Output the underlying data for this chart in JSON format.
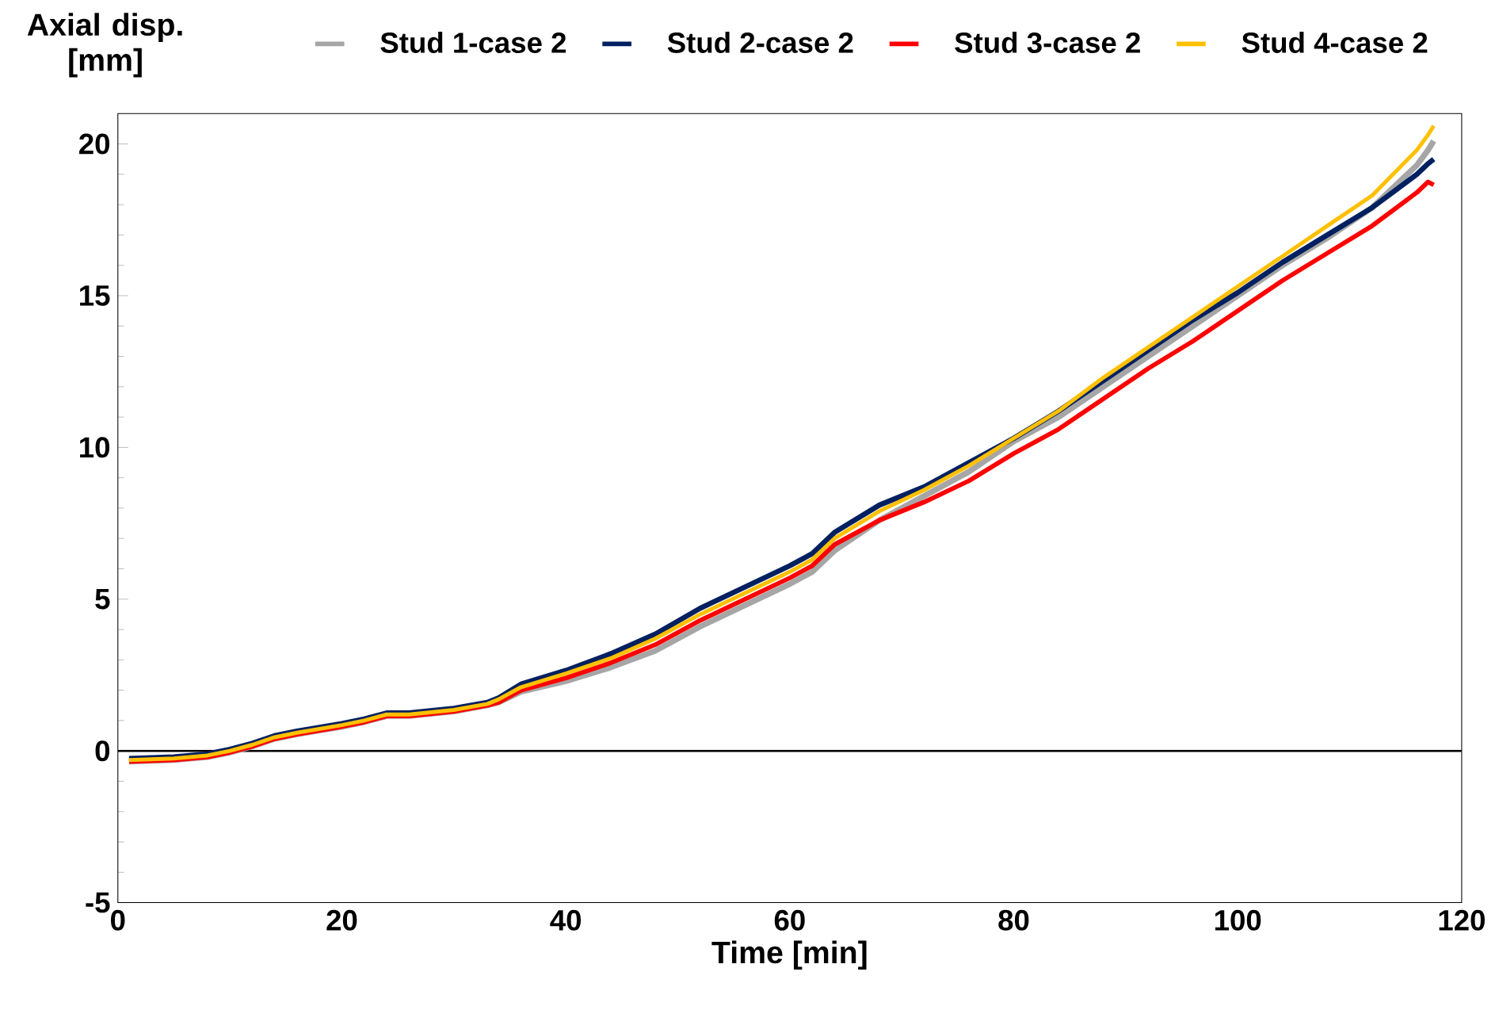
{
  "chart_data": {
    "type": "line",
    "xlabel": "Time [min]",
    "ylabel": "Axial disp. [mm]",
    "x": [
      1,
      5,
      8,
      10,
      12,
      14,
      16,
      20,
      22,
      24,
      26,
      30,
      33,
      34,
      36,
      40,
      44,
      48,
      52,
      56,
      60,
      62,
      64,
      68,
      72,
      76,
      80,
      84,
      88,
      92,
      96,
      100,
      104,
      108,
      112,
      116,
      117,
      117.5
    ],
    "series": [
      {
        "name": "Stud 1-case 2",
        "color": "#a6a6a6",
        "values": [
          -0.35,
          -0.3,
          -0.2,
          -0.05,
          0.15,
          0.4,
          0.55,
          0.8,
          0.95,
          1.15,
          1.15,
          1.3,
          1.5,
          1.6,
          1.95,
          2.3,
          2.75,
          3.3,
          4.1,
          4.8,
          5.5,
          5.9,
          6.6,
          7.6,
          8.4,
          9.2,
          10.2,
          11.0,
          12.0,
          13.0,
          14.0,
          15.0,
          16.0,
          16.9,
          17.9,
          19.3,
          19.8,
          20.1
        ]
      },
      {
        "name": "Stud 2-case 2",
        "color": "#002060",
        "values": [
          -0.25,
          -0.2,
          -0.1,
          0.05,
          0.25,
          0.5,
          0.65,
          0.9,
          1.05,
          1.25,
          1.25,
          1.4,
          1.6,
          1.75,
          2.2,
          2.65,
          3.2,
          3.85,
          4.7,
          5.4,
          6.1,
          6.5,
          7.2,
          8.1,
          8.7,
          9.5,
          10.3,
          11.2,
          12.2,
          13.2,
          14.2,
          15.1,
          16.1,
          17.0,
          17.9,
          19.0,
          19.35,
          19.5
        ]
      },
      {
        "name": "Stud 3-case 2",
        "color": "#ff0000",
        "values": [
          -0.35,
          -0.3,
          -0.2,
          -0.05,
          0.15,
          0.4,
          0.55,
          0.8,
          0.95,
          1.15,
          1.15,
          1.3,
          1.5,
          1.6,
          2.0,
          2.4,
          2.9,
          3.5,
          4.3,
          5.0,
          5.7,
          6.1,
          6.8,
          7.6,
          8.2,
          8.9,
          9.8,
          10.6,
          11.6,
          12.6,
          13.5,
          14.5,
          15.5,
          16.4,
          17.3,
          18.4,
          18.75,
          18.65
        ]
      },
      {
        "name": "Stud 4-case 2",
        "color": "#ffc000",
        "values": [
          -0.3,
          -0.25,
          -0.15,
          0,
          0.2,
          0.45,
          0.6,
          0.85,
          1.0,
          1.2,
          1.2,
          1.35,
          1.55,
          1.7,
          2.1,
          2.55,
          3.05,
          3.7,
          4.5,
          5.2,
          5.9,
          6.3,
          7.0,
          7.9,
          8.6,
          9.4,
          10.3,
          11.2,
          12.3,
          13.3,
          14.3,
          15.3,
          16.3,
          17.3,
          18.3,
          19.8,
          20.3,
          20.6
        ]
      }
    ],
    "xlim": [
      0,
      120
    ],
    "ylim": [
      -5,
      21
    ],
    "xticks": [
      0,
      20,
      40,
      60,
      80,
      100,
      120
    ],
    "yticks": [
      -5,
      0,
      5,
      10,
      15,
      20
    ],
    "grid": false,
    "legend": "top",
    "marker": "none",
    "line_style": "solid",
    "ref_lines": [
      {
        "axis": "y",
        "value": 0
      }
    ]
  }
}
